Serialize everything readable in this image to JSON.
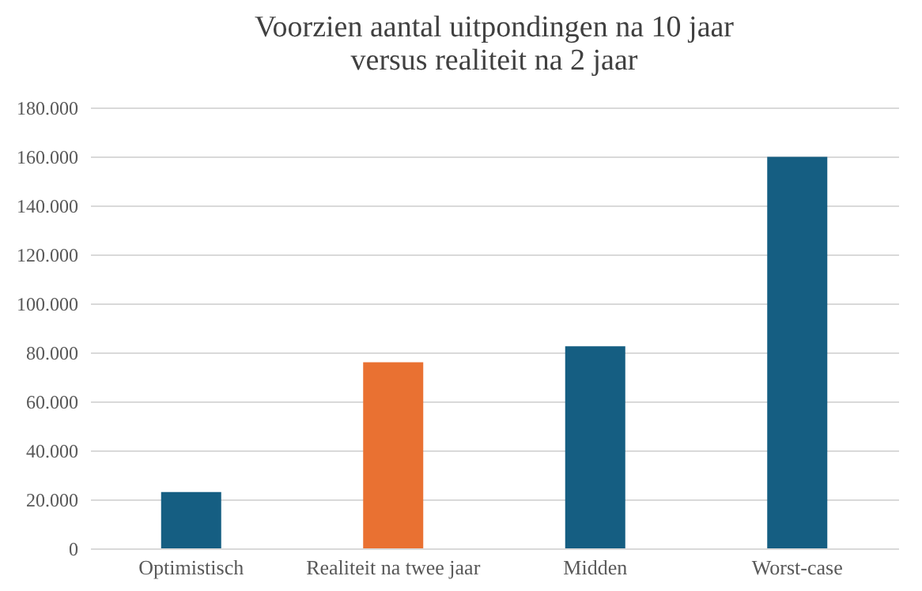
{
  "chart_data": {
    "type": "bar",
    "title": [
      "Voorzien aantal uitpondingen na 10 jaar",
      "versus realiteit na 2 jaar"
    ],
    "categories": [
      "Optimistisch",
      "Realiteit na twee jaar",
      "Midden",
      "Worst-case"
    ],
    "values": [
      23000,
      76000,
      82500,
      159800
    ],
    "colors": [
      "#155e82",
      "#e97132",
      "#155e82",
      "#155e82"
    ],
    "ylim": [
      0,
      180000
    ],
    "yticks": [
      {
        "value": 0,
        "label": "0"
      },
      {
        "value": 20000,
        "label": "20.000"
      },
      {
        "value": 40000,
        "label": "40.000"
      },
      {
        "value": 60000,
        "label": "60.000"
      },
      {
        "value": 80000,
        "label": "80.000"
      },
      {
        "value": 100000,
        "label": "100.000"
      },
      {
        "value": 120000,
        "label": "120.000"
      },
      {
        "value": 140000,
        "label": "140.000"
      },
      {
        "value": 160000,
        "label": "160.000"
      },
      {
        "value": 180000,
        "label": "180.000"
      }
    ],
    "grid": "y",
    "legend": false
  }
}
